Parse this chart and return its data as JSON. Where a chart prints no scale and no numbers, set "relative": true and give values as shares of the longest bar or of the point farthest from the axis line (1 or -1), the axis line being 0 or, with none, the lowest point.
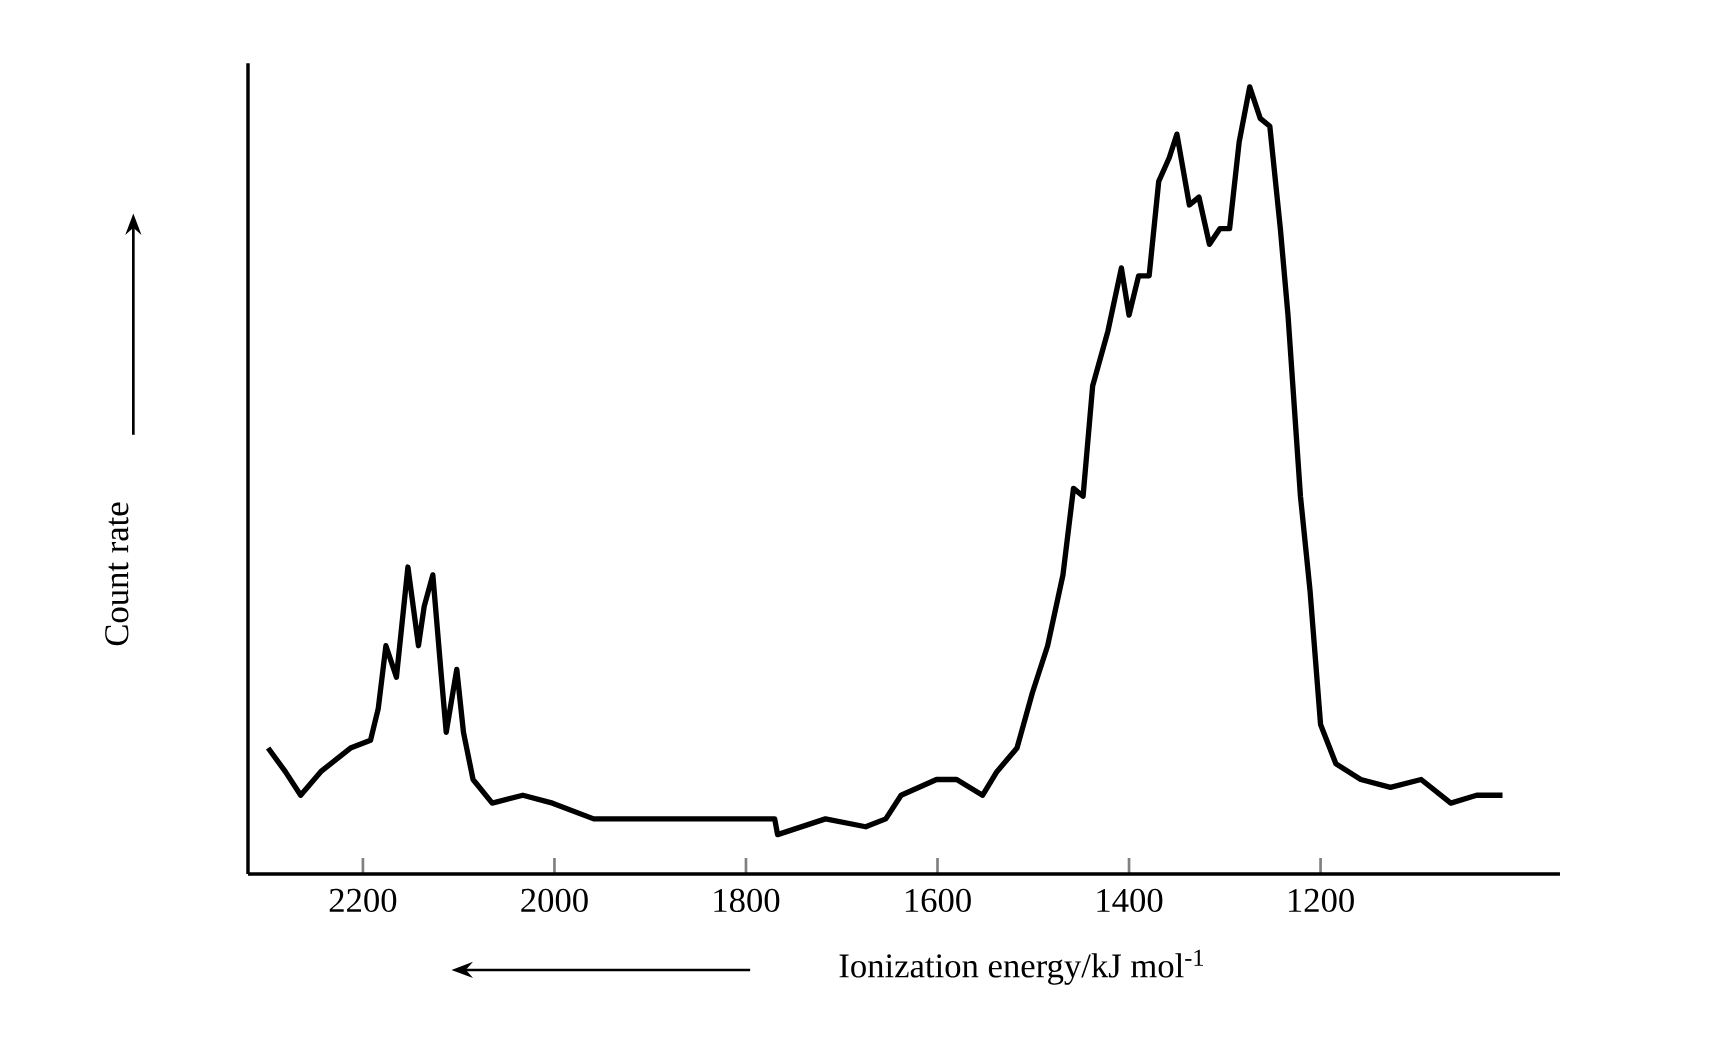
{
  "chart_data": {
    "type": "line",
    "xlabel": "Ionization energy/kJ mol$^{-1}$",
    "ylabel": "Count rate",
    "relative": true,
    "color": "#000000",
    "xlim": [
      2320,
      950
    ],
    "xticks": [
      2200,
      2000,
      1800,
      1600,
      1400,
      1200
    ],
    "x": [
      2299,
      2281,
      2265,
      2244,
      2213,
      2192,
      2184,
      2176,
      2165,
      2153,
      2142,
      2136,
      2127,
      2118,
      2113,
      2102,
      2095,
      2085,
      2065,
      2033,
      2002,
      1959,
      1907,
      1843,
      1770,
      1767,
      1717,
      1675,
      1654,
      1638,
      1601,
      1580,
      1553,
      1538,
      1517,
      1501,
      1485,
      1469,
      1458,
      1448,
      1438,
      1422,
      1408,
      1400,
      1390,
      1379,
      1369,
      1358,
      1350,
      1337,
      1327,
      1316,
      1305,
      1295,
      1285,
      1274,
      1263,
      1253,
      1242,
      1234,
      1221,
      1211,
      1200,
      1184,
      1158,
      1127,
      1095,
      1064,
      1037,
      1010
    ],
    "values": [
      0.16,
      0.13,
      0.1,
      0.13,
      0.16,
      0.17,
      0.21,
      0.29,
      0.25,
      0.39,
      0.29,
      0.34,
      0.38,
      0.25,
      0.18,
      0.26,
      0.18,
      0.12,
      0.09,
      0.1,
      0.09,
      0.07,
      0.07,
      0.07,
      0.07,
      0.05,
      0.07,
      0.06,
      0.07,
      0.1,
      0.12,
      0.12,
      0.1,
      0.13,
      0.16,
      0.23,
      0.29,
      0.38,
      0.49,
      0.48,
      0.62,
      0.69,
      0.77,
      0.71,
      0.76,
      0.76,
      0.88,
      0.91,
      0.94,
      0.85,
      0.86,
      0.8,
      0.82,
      0.82,
      0.93,
      1.0,
      0.96,
      0.95,
      0.82,
      0.71,
      0.48,
      0.36,
      0.19,
      0.14,
      0.12,
      0.11,
      0.12,
      0.09,
      0.1,
      0.1
    ],
    "marker": "none",
    "line_style": "solid"
  }
}
